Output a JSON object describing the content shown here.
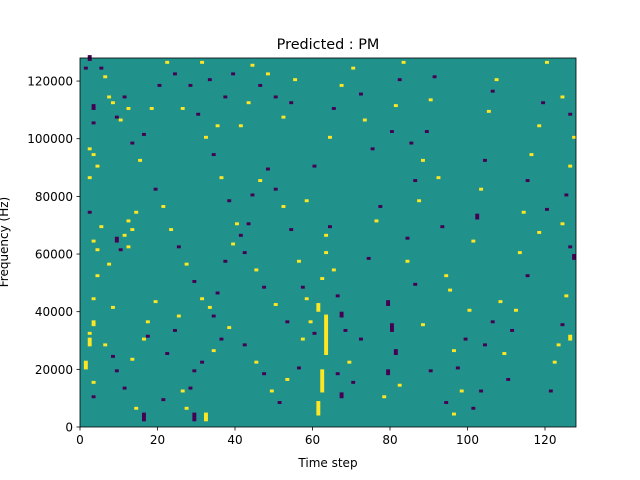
{
  "chart_data": {
    "type": "heatmap",
    "title": "Predicted : PM",
    "xlabel": "Time step",
    "ylabel": "Frequency (Hz)",
    "xlim": [
      0,
      128
    ],
    "ylim": [
      0,
      128000
    ],
    "xticks": [
      0,
      20,
      40,
      60,
      80,
      100,
      120
    ],
    "yticks": [
      0,
      20000,
      40000,
      60000,
      80000,
      100000,
      120000
    ],
    "colormap": "viridis",
    "background_value": 0,
    "colors": {
      "low": "#440154",
      "mid": "#21918c",
      "high": "#fde725"
    },
    "grid": false,
    "n_time_steps": 128,
    "n_freq_bins": 128,
    "bin_hz": 1000,
    "cells": [
      [
        1,
        124,
        1,
        "low"
      ],
      [
        2,
        127,
        2,
        "low"
      ],
      [
        3,
        110,
        2,
        "low"
      ],
      [
        3,
        105,
        1,
        "low"
      ],
      [
        2,
        96,
        1,
        "high"
      ],
      [
        3,
        94,
        1,
        "high"
      ],
      [
        4,
        90,
        1,
        "high"
      ],
      [
        2,
        86,
        1,
        "high"
      ],
      [
        2,
        74,
        1,
        "low"
      ],
      [
        5,
        69,
        1,
        "high"
      ],
      [
        3,
        64,
        1,
        "high"
      ],
      [
        4,
        52,
        1,
        "high"
      ],
      [
        3,
        44,
        1,
        "high"
      ],
      [
        3,
        35,
        2,
        "high"
      ],
      [
        2,
        32,
        1,
        "high"
      ],
      [
        2,
        28,
        3,
        "high"
      ],
      [
        1,
        20,
        3,
        "high"
      ],
      [
        3,
        15,
        1,
        "high"
      ],
      [
        3,
        10,
        1,
        "low"
      ],
      [
        4,
        61,
        1,
        "high"
      ],
      [
        5,
        124,
        1,
        "low"
      ],
      [
        6,
        121,
        1,
        "high"
      ],
      [
        7,
        114,
        1,
        "high"
      ],
      [
        8,
        112,
        1,
        "high"
      ],
      [
        9,
        107,
        1,
        "low"
      ],
      [
        11,
        114,
        1,
        "low"
      ],
      [
        12,
        110,
        1,
        "high"
      ],
      [
        13,
        98,
        1,
        "low"
      ],
      [
        10,
        106,
        1,
        "high"
      ],
      [
        12,
        71,
        1,
        "high"
      ],
      [
        14,
        74,
        1,
        "high"
      ],
      [
        13,
        68,
        1,
        "high"
      ],
      [
        11,
        66,
        1,
        "high"
      ],
      [
        12,
        62,
        1,
        "high"
      ],
      [
        9,
        64,
        2,
        "low"
      ],
      [
        7,
        56,
        1,
        "high"
      ],
      [
        10,
        61,
        1,
        "low"
      ],
      [
        8,
        41,
        1,
        "high"
      ],
      [
        6,
        28,
        1,
        "high"
      ],
      [
        8,
        24,
        1,
        "low"
      ],
      [
        9,
        19,
        1,
        "low"
      ],
      [
        11,
        13,
        1,
        "low"
      ],
      [
        14,
        6,
        1,
        "high"
      ],
      [
        13,
        23,
        1,
        "high"
      ],
      [
        16,
        30,
        1,
        "high"
      ],
      [
        17,
        36,
        1,
        "high"
      ],
      [
        19,
        43,
        1,
        "high"
      ],
      [
        16,
        2,
        3,
        "low"
      ],
      [
        17,
        31,
        1,
        "low"
      ],
      [
        22,
        25,
        1,
        "low"
      ],
      [
        24,
        33,
        1,
        "low"
      ],
      [
        25,
        38,
        1,
        "high"
      ],
      [
        26,
        12,
        1,
        "high"
      ],
      [
        27,
        6,
        1,
        "high"
      ],
      [
        21,
        9,
        1,
        "low"
      ],
      [
        29,
        2,
        3,
        "low"
      ],
      [
        32,
        2,
        3,
        "high"
      ],
      [
        28,
        13,
        1,
        "low"
      ],
      [
        29,
        19,
        1,
        "low"
      ],
      [
        31,
        22,
        1,
        "low"
      ],
      [
        34,
        26,
        1,
        "high"
      ],
      [
        36,
        30,
        1,
        "low"
      ],
      [
        33,
        41,
        1,
        "high"
      ],
      [
        35,
        46,
        1,
        "low"
      ],
      [
        37,
        57,
        1,
        "low"
      ],
      [
        39,
        63,
        1,
        "high"
      ],
      [
        41,
        66,
        1,
        "low"
      ],
      [
        43,
        70,
        1,
        "low"
      ],
      [
        44,
        80,
        1,
        "low"
      ],
      [
        46,
        85,
        1,
        "high"
      ],
      [
        48,
        89,
        1,
        "low"
      ],
      [
        50,
        82,
        1,
        "low"
      ],
      [
        52,
        76,
        1,
        "high"
      ],
      [
        54,
        68,
        1,
        "low"
      ],
      [
        56,
        57,
        1,
        "high"
      ],
      [
        57,
        48,
        1,
        "low"
      ],
      [
        58,
        44,
        1,
        "high"
      ],
      [
        59,
        36,
        1,
        "high"
      ],
      [
        60,
        32,
        1,
        "low"
      ],
      [
        61,
        4,
        5,
        "high"
      ],
      [
        62,
        12,
        8,
        "high"
      ],
      [
        63,
        25,
        14,
        "high"
      ],
      [
        61,
        40,
        3,
        "high"
      ],
      [
        62,
        51,
        1,
        "high"
      ],
      [
        63,
        60,
        1,
        "high"
      ],
      [
        63,
        66,
        1,
        "high"
      ],
      [
        64,
        69,
        1,
        "low"
      ],
      [
        65,
        54,
        1,
        "high"
      ],
      [
        66,
        45,
        1,
        "low"
      ],
      [
        67,
        38,
        2,
        "low"
      ],
      [
        68,
        33,
        1,
        "low"
      ],
      [
        66,
        18,
        1,
        "low"
      ],
      [
        67,
        10,
        2,
        "low"
      ],
      [
        69,
        22,
        1,
        "high"
      ],
      [
        70,
        15,
        1,
        "low"
      ],
      [
        72,
        30,
        1,
        "low"
      ],
      [
        74,
        58,
        1,
        "low"
      ],
      [
        76,
        71,
        1,
        "high"
      ],
      [
        77,
        76,
        1,
        "low"
      ],
      [
        79,
        42,
        2,
        "low"
      ],
      [
        80,
        33,
        3,
        "low"
      ],
      [
        81,
        25,
        2,
        "low"
      ],
      [
        79,
        18,
        2,
        "low"
      ],
      [
        82,
        14,
        1,
        "high"
      ],
      [
        78,
        10,
        1,
        "high"
      ],
      [
        80,
        102,
        1,
        "low"
      ],
      [
        81,
        111,
        1,
        "high"
      ],
      [
        82,
        120,
        1,
        "low"
      ],
      [
        83,
        126,
        1,
        "high"
      ],
      [
        85,
        98,
        1,
        "low"
      ],
      [
        86,
        85,
        1,
        "low"
      ],
      [
        87,
        78,
        1,
        "high"
      ],
      [
        88,
        92,
        1,
        "high"
      ],
      [
        89,
        102,
        1,
        "low"
      ],
      [
        90,
        113,
        1,
        "high"
      ],
      [
        91,
        121,
        1,
        "low"
      ],
      [
        92,
        86,
        1,
        "high"
      ],
      [
        93,
        69,
        1,
        "low"
      ],
      [
        94,
        52,
        1,
        "high"
      ],
      [
        95,
        47,
        1,
        "high"
      ],
      [
        96,
        26,
        1,
        "high"
      ],
      [
        97,
        20,
        1,
        "low"
      ],
      [
        98,
        12,
        1,
        "high"
      ],
      [
        99,
        30,
        1,
        "low"
      ],
      [
        100,
        40,
        1,
        "high"
      ],
      [
        101,
        64,
        1,
        "high"
      ],
      [
        102,
        72,
        2,
        "low"
      ],
      [
        103,
        82,
        1,
        "high"
      ],
      [
        104,
        92,
        1,
        "low"
      ],
      [
        105,
        109,
        1,
        "high"
      ],
      [
        106,
        116,
        1,
        "low"
      ],
      [
        107,
        120,
        1,
        "high"
      ],
      [
        109,
        25,
        1,
        "high"
      ],
      [
        110,
        16,
        1,
        "low"
      ],
      [
        111,
        33,
        1,
        "low"
      ],
      [
        112,
        40,
        1,
        "high"
      ],
      [
        113,
        60,
        1,
        "high"
      ],
      [
        114,
        74,
        1,
        "high"
      ],
      [
        115,
        85,
        1,
        "low"
      ],
      [
        116,
        94,
        1,
        "high"
      ],
      [
        118,
        104,
        1,
        "high"
      ],
      [
        119,
        112,
        1,
        "low"
      ],
      [
        120,
        126,
        1,
        "high"
      ],
      [
        121,
        12,
        1,
        "low"
      ],
      [
        122,
        22,
        1,
        "high"
      ],
      [
        123,
        28,
        1,
        "high"
      ],
      [
        124,
        35,
        1,
        "low"
      ],
      [
        125,
        45,
        1,
        "high"
      ],
      [
        126,
        30,
        2,
        "high"
      ],
      [
        127,
        58,
        2,
        "low"
      ],
      [
        126,
        62,
        1,
        "low"
      ],
      [
        124,
        70,
        1,
        "high"
      ],
      [
        125,
        80,
        1,
        "low"
      ],
      [
        126,
        90,
        1,
        "high"
      ],
      [
        127,
        100,
        1,
        "high"
      ],
      [
        126,
        108,
        1,
        "low"
      ],
      [
        124,
        114,
        1,
        "high"
      ],
      [
        120,
        75,
        1,
        "low"
      ],
      [
        118,
        67,
        1,
        "high"
      ],
      [
        115,
        52,
        1,
        "low"
      ],
      [
        108,
        43,
        1,
        "high"
      ],
      [
        106,
        36,
        1,
        "low"
      ],
      [
        104,
        28,
        1,
        "low"
      ],
      [
        103,
        12,
        1,
        "low"
      ],
      [
        101,
        6,
        1,
        "low"
      ],
      [
        96,
        4,
        1,
        "high"
      ],
      [
        94,
        8,
        1,
        "low"
      ],
      [
        90,
        19,
        1,
        "low"
      ],
      [
        88,
        35,
        1,
        "high"
      ],
      [
        86,
        49,
        1,
        "low"
      ],
      [
        84,
        57,
        1,
        "high"
      ],
      [
        84,
        65,
        1,
        "low"
      ],
      [
        75,
        96,
        1,
        "low"
      ],
      [
        73,
        106,
        1,
        "high"
      ],
      [
        72,
        115,
        1,
        "low"
      ],
      [
        70,
        124,
        1,
        "high"
      ],
      [
        67,
        118,
        1,
        "high"
      ],
      [
        65,
        110,
        1,
        "low"
      ],
      [
        64,
        100,
        1,
        "high"
      ],
      [
        60,
        90,
        1,
        "low"
      ],
      [
        58,
        78,
        1,
        "high"
      ],
      [
        55,
        120,
        1,
        "high"
      ],
      [
        54,
        112,
        1,
        "low"
      ],
      [
        52,
        107,
        1,
        "high"
      ],
      [
        50,
        114,
        1,
        "low"
      ],
      [
        48,
        122,
        1,
        "high"
      ],
      [
        46,
        118,
        1,
        "low"
      ],
      [
        44,
        125,
        1,
        "high"
      ],
      [
        43,
        112,
        1,
        "high"
      ],
      [
        41,
        104,
        1,
        "high"
      ],
      [
        39,
        122,
        1,
        "low"
      ],
      [
        37,
        114,
        1,
        "low"
      ],
      [
        35,
        104,
        1,
        "high"
      ],
      [
        33,
        120,
        1,
        "low"
      ],
      [
        31,
        126,
        1,
        "high"
      ],
      [
        28,
        118,
        1,
        "low"
      ],
      [
        26,
        110,
        1,
        "high"
      ],
      [
        24,
        122,
        1,
        "low"
      ],
      [
        22,
        126,
        1,
        "high"
      ],
      [
        20,
        118,
        1,
        "low"
      ],
      [
        18,
        110,
        1,
        "high"
      ],
      [
        16,
        101,
        1,
        "low"
      ],
      [
        15,
        92,
        1,
        "high"
      ],
      [
        19,
        82,
        1,
        "low"
      ],
      [
        21,
        76,
        1,
        "high"
      ],
      [
        23,
        68,
        1,
        "high"
      ],
      [
        25,
        62,
        1,
        "low"
      ],
      [
        27,
        56,
        1,
        "high"
      ],
      [
        29,
        50,
        1,
        "low"
      ],
      [
        31,
        44,
        1,
        "high"
      ],
      [
        34,
        38,
        1,
        "low"
      ],
      [
        38,
        34,
        1,
        "high"
      ],
      [
        42,
        28,
        1,
        "low"
      ],
      [
        45,
        22,
        1,
        "high"
      ],
      [
        47,
        18,
        1,
        "low"
      ],
      [
        49,
        12,
        1,
        "high"
      ],
      [
        51,
        8,
        1,
        "low"
      ],
      [
        53,
        16,
        1,
        "high"
      ],
      [
        56,
        20,
        1,
        "low"
      ],
      [
        57,
        30,
        1,
        "high"
      ],
      [
        53,
        36,
        1,
        "low"
      ],
      [
        50,
        42,
        1,
        "high"
      ],
      [
        47,
        48,
        1,
        "low"
      ],
      [
        45,
        54,
        1,
        "high"
      ],
      [
        42,
        60,
        1,
        "low"
      ],
      [
        40,
        70,
        1,
        "high"
      ],
      [
        38,
        78,
        1,
        "low"
      ],
      [
        36,
        86,
        1,
        "high"
      ],
      [
        34,
        94,
        1,
        "low"
      ],
      [
        32,
        100,
        1,
        "high"
      ],
      [
        30,
        108,
        1,
        "low"
      ]
    ]
  }
}
